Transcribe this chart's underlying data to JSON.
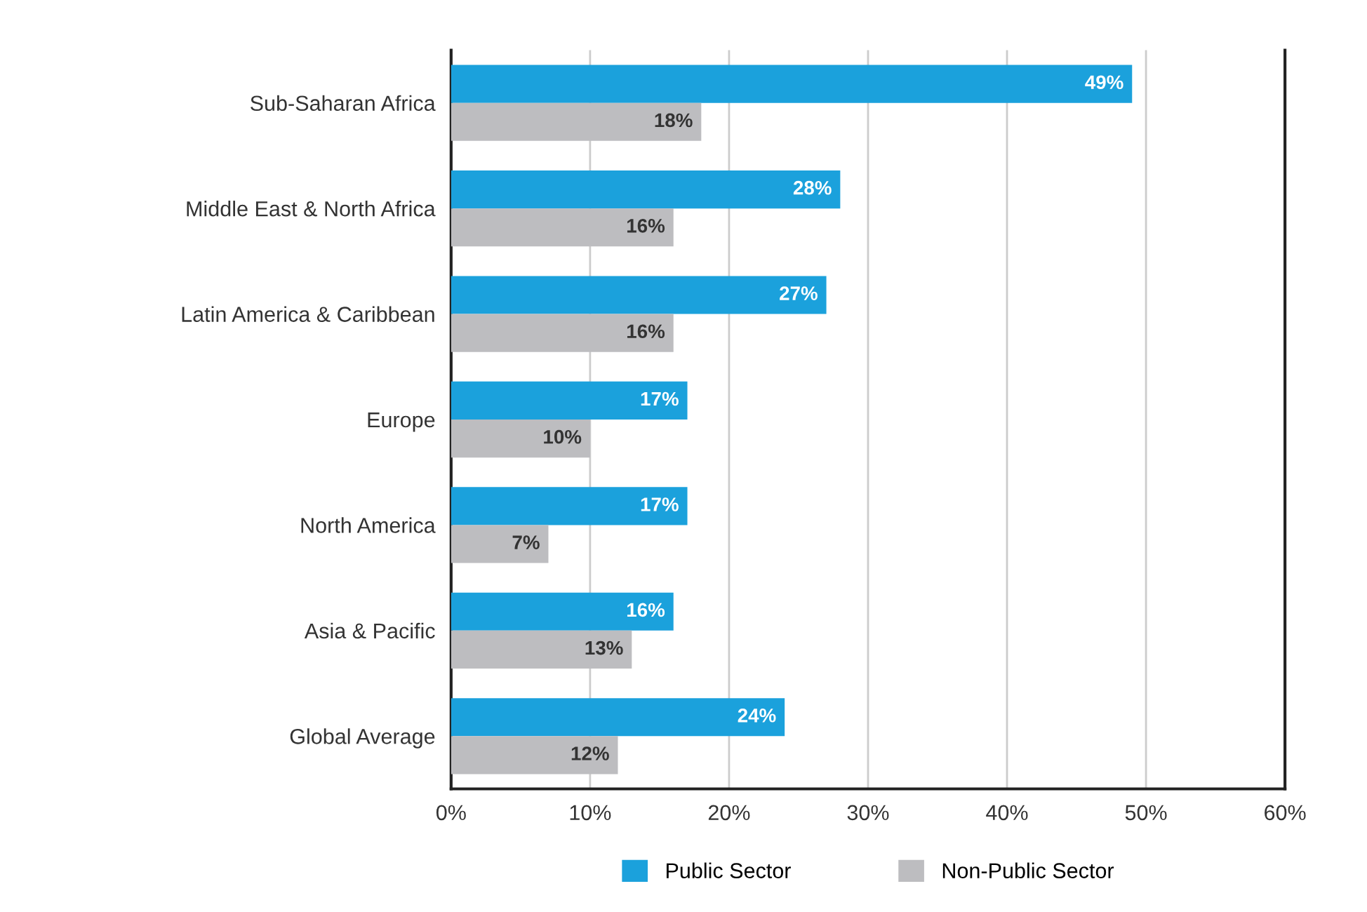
{
  "chart_data": {
    "type": "bar",
    "orientation": "horizontal",
    "categories": [
      "Sub-Saharan Africa",
      "Middle East & North Africa",
      "Latin America & Caribbean",
      "Europe",
      "North America",
      "Asia & Pacific",
      "Global Average"
    ],
    "series": [
      {
        "name": "Public Sector",
        "color": "#1ba1dc",
        "values": [
          49,
          28,
          27,
          17,
          17,
          16,
          24
        ],
        "value_labels": [
          "49%",
          "28%",
          "27%",
          "17%",
          "17%",
          "16%",
          "24%"
        ]
      },
      {
        "name": "Non-Public Sector",
        "color": "#bdbdc0",
        "values": [
          18,
          16,
          16,
          10,
          7,
          13,
          12
        ],
        "value_labels": [
          "18%",
          "16%",
          "16%",
          "10%",
          "7%",
          "13%",
          "12%"
        ]
      }
    ],
    "xlim": [
      0,
      60
    ],
    "xticks": [
      {
        "value": 0,
        "label": "0%"
      },
      {
        "value": 10,
        "label": "10%"
      },
      {
        "value": 20,
        "label": "20%"
      },
      {
        "value": 30,
        "label": "30%"
      },
      {
        "value": 40,
        "label": "40%"
      },
      {
        "value": 50,
        "label": "50%"
      },
      {
        "value": 60,
        "label": "60%"
      }
    ],
    "grid": "x",
    "legend": "bottom"
  }
}
